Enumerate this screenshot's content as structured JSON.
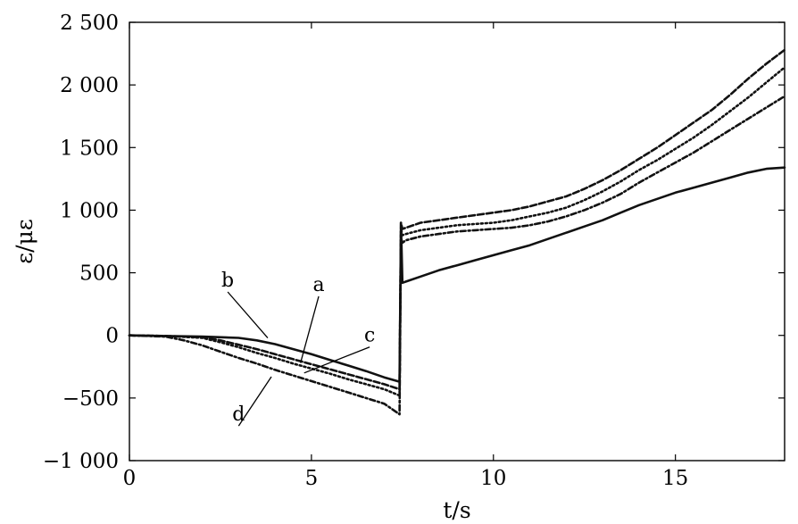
{
  "chart_data": {
    "type": "line",
    "xlabel": "t/s",
    "ylabel": "ε/με",
    "xlim": [
      0,
      18
    ],
    "ylim": [
      -1000,
      2500
    ],
    "xticks": [
      0,
      5,
      10,
      15
    ],
    "xtick_labels": [
      "0",
      "5",
      "10",
      "15"
    ],
    "yticks": [
      -1000,
      -500,
      0,
      500,
      1000,
      1500,
      2000,
      2500
    ],
    "ytick_labels": [
      "−1 000",
      "−500",
      "0",
      "500",
      "1 000",
      "1 500",
      "2 000",
      "2 500"
    ],
    "grid": false,
    "legend": "none",
    "series": [
      {
        "name": "a",
        "style": "solid",
        "x": [
          0,
          1,
          2,
          3,
          3.5,
          4,
          4.5,
          5,
          5.5,
          6,
          6.5,
          7,
          7.42,
          7.46,
          7.5,
          7.6,
          8,
          8.5,
          9,
          9.5,
          10,
          10.5,
          11,
          11.5,
          12,
          12.5,
          13,
          13.5,
          14,
          14.5,
          15,
          15.5,
          16,
          16.5,
          17,
          17.5,
          18
        ],
        "y": [
          0,
          -5,
          -10,
          -20,
          -40,
          -70,
          -110,
          -150,
          -195,
          -240,
          -285,
          -335,
          -370,
          900,
          420,
          430,
          470,
          520,
          560,
          600,
          640,
          680,
          720,
          770,
          820,
          870,
          920,
          980,
          1040,
          1090,
          1140,
          1180,
          1220,
          1260,
          1300,
          1330,
          1340
        ]
      },
      {
        "name": "b",
        "style": "dash",
        "x": [
          0,
          1,
          2,
          2.5,
          3,
          3.5,
          4,
          4.5,
          5,
          5.5,
          6,
          6.5,
          7,
          7.42,
          7.46,
          7.5,
          7.6,
          8,
          8.5,
          9,
          9.5,
          10,
          10.5,
          11,
          11.5,
          12,
          12.5,
          13,
          13.5,
          14,
          14.5,
          15,
          15.5,
          16,
          16.5,
          17,
          17.5,
          18
        ],
        "y": [
          0,
          -5,
          -15,
          -40,
          -75,
          -110,
          -150,
          -190,
          -230,
          -270,
          -310,
          -350,
          -390,
          -430,
          900,
          850,
          860,
          900,
          920,
          940,
          960,
          980,
          1000,
          1030,
          1070,
          1110,
          1170,
          1240,
          1320,
          1410,
          1500,
          1600,
          1700,
          1800,
          1920,
          2050,
          2170,
          2280
        ]
      },
      {
        "name": "c",
        "style": "dot",
        "x": [
          0,
          1,
          2,
          2.5,
          3,
          3.5,
          4,
          4.5,
          5,
          5.5,
          6,
          6.5,
          7,
          7.42,
          7.46,
          7.5,
          7.6,
          8,
          8.5,
          9,
          9.5,
          10,
          10.5,
          11,
          11.5,
          12,
          12.5,
          13,
          13.5,
          14,
          14.5,
          15,
          15.5,
          16,
          16.5,
          17,
          17.5,
          18
        ],
        "y": [
          0,
          -5,
          -20,
          -55,
          -95,
          -140,
          -180,
          -225,
          -265,
          -305,
          -350,
          -390,
          -430,
          -480,
          850,
          800,
          810,
          840,
          860,
          880,
          890,
          900,
          920,
          950,
          980,
          1020,
          1080,
          1150,
          1230,
          1320,
          1400,
          1490,
          1580,
          1680,
          1790,
          1900,
          2020,
          2140
        ]
      },
      {
        "name": "d",
        "style": "dashdot",
        "x": [
          0,
          1,
          1.5,
          2,
          2.5,
          3,
          3.5,
          4,
          4.5,
          5,
          5.5,
          6,
          6.5,
          7,
          7.42,
          7.46,
          7.5,
          7.6,
          8,
          8.5,
          9,
          9.5,
          10,
          10.5,
          11,
          11.5,
          12,
          12.5,
          13,
          13.5,
          14,
          14.5,
          15,
          15.5,
          16,
          16.5,
          17,
          17.5,
          18
        ],
        "y": [
          0,
          -10,
          -40,
          -80,
          -130,
          -180,
          -225,
          -275,
          -320,
          -365,
          -410,
          -455,
          -500,
          -545,
          -630,
          780,
          740,
          760,
          790,
          810,
          830,
          840,
          850,
          860,
          880,
          910,
          950,
          1000,
          1060,
          1130,
          1220,
          1300,
          1380,
          1460,
          1550,
          1640,
          1730,
          1820,
          1910
        ]
      }
    ],
    "annotations": [
      {
        "text": "b",
        "x": 2.7,
        "y": 390,
        "point_x": 3.8,
        "point_y": -20
      },
      {
        "text": "a",
        "x": 5.2,
        "y": 355,
        "point_x": 4.7,
        "point_y": -220
      },
      {
        "text": "c",
        "x": 6.6,
        "y": -50,
        "point_x": 4.8,
        "point_y": -300
      },
      {
        "text": "d",
        "x": 3.0,
        "y": -680,
        "point_x": 3.9,
        "point_y": -330
      }
    ]
  }
}
